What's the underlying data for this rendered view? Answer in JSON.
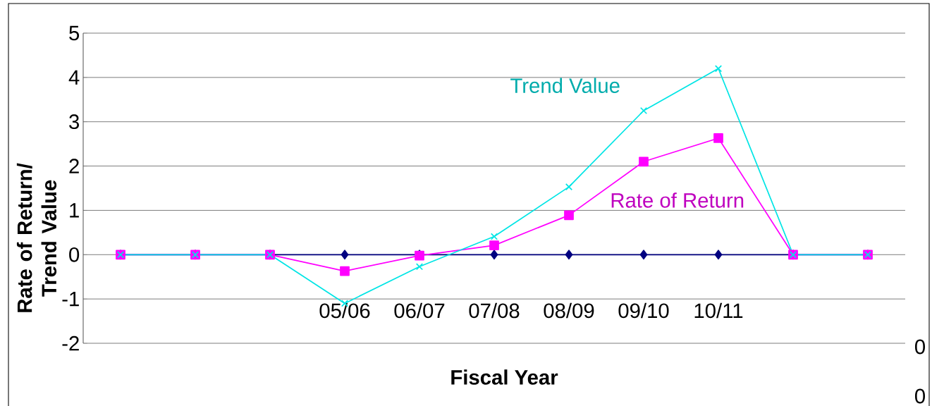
{
  "chart_data": {
    "type": "line",
    "xlabel": "Fiscal Year",
    "ylabel": "Rate of Return/ Trend Value",
    "categories": [
      null,
      null,
      null,
      "05/06",
      "06/07",
      "07/08",
      "08/09",
      "09/10",
      "10/11",
      null,
      null
    ],
    "series": [
      {
        "color": "#000080",
        "marker": "diamond",
        "values": [
          0,
          0,
          0,
          0,
          0,
          0,
          0,
          0,
          0,
          0,
          0
        ]
      },
      {
        "name": "Rate of Return",
        "color": "#ff00ff",
        "marker": "square",
        "values": [
          0,
          0,
          0,
          -0.37,
          -0.02,
          0.21,
          0.89,
          2.1,
          2.63,
          0,
          0
        ]
      },
      {
        "name": "Trend Value",
        "color": "#00e5e5",
        "marker": "cross",
        "values": [
          0,
          0,
          0,
          -1.1,
          -0.27,
          0.41,
          1.53,
          3.25,
          4.2,
          0,
          0
        ]
      }
    ],
    "ylim": [
      -2,
      5
    ],
    "yticks": [
      -2,
      -1,
      0,
      1,
      2,
      3,
      4,
      5
    ],
    "grid": "y",
    "line_style": "solid",
    "annotations": [
      "0",
      "0"
    ]
  }
}
